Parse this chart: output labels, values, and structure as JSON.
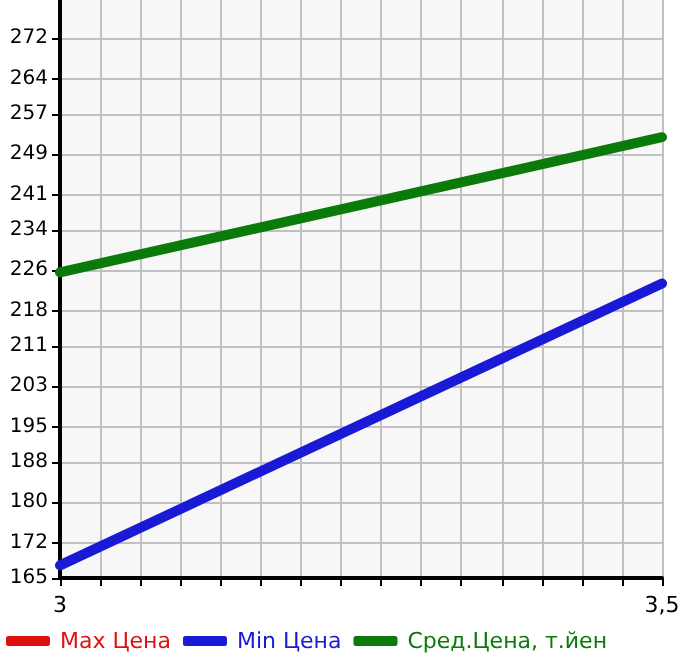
{
  "chart_data": {
    "type": "line",
    "x": [
      3,
      3.5
    ],
    "xlim": [
      3,
      3.5
    ],
    "xticks": [
      {
        "value": 3,
        "label": "3"
      },
      {
        "value": 3.0333,
        "label": null
      },
      {
        "value": 3.0667,
        "label": null
      },
      {
        "value": 3.1,
        "label": null
      },
      {
        "value": 3.1333,
        "label": null
      },
      {
        "value": 3.1667,
        "label": null
      },
      {
        "value": 3.2,
        "label": null
      },
      {
        "value": 3.2333,
        "label": null
      },
      {
        "value": 3.2667,
        "label": null
      },
      {
        "value": 3.3,
        "label": null
      },
      {
        "value": 3.3333,
        "label": null
      },
      {
        "value": 3.3667,
        "label": null
      },
      {
        "value": 3.4,
        "label": null
      },
      {
        "value": 3.4333,
        "label": null
      },
      {
        "value": 3.4667,
        "label": null
      },
      {
        "value": 3.5,
        "label": "3,5"
      }
    ],
    "ylim": [
      165,
      279.6
    ],
    "yticks": [
      165,
      172,
      180,
      188,
      195,
      203,
      211,
      218,
      226,
      234,
      241,
      249,
      257,
      264,
      272
    ],
    "series": [
      {
        "name": "Max Цена",
        "color": "#dd1111",
        "values": [
          null,
          null
        ]
      },
      {
        "name": "Min Цена",
        "color": "#1a1ad6",
        "values": [
          167.5,
          223.4
        ]
      },
      {
        "name": "Сред.Цена, т.йен",
        "color": "#0a7a0a",
        "values": [
          225.6,
          252.4
        ]
      }
    ],
    "grid": true,
    "legend": "bottom",
    "marker": "none",
    "line_style": "solid"
  }
}
